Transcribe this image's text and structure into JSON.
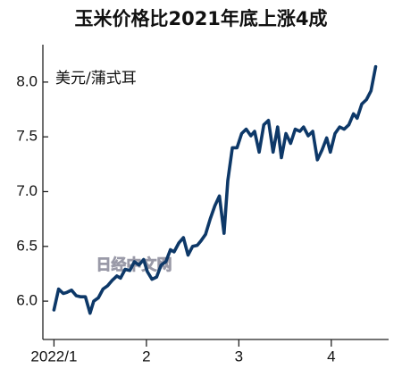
{
  "chart_data": {
    "type": "line",
    "title": "玉米价格比2021年底上涨4成",
    "unit_label": "美元/蒲式耳",
    "watermark": "日经中文网",
    "x": [
      1.0,
      1.05,
      1.1,
      1.14,
      1.19,
      1.24,
      1.29,
      1.34,
      1.39,
      1.43,
      1.48,
      1.53,
      1.58,
      1.63,
      1.68,
      1.72,
      1.77,
      1.82,
      1.87,
      1.92,
      1.97,
      2.01,
      2.06,
      2.11,
      2.16,
      2.21,
      2.26,
      2.3,
      2.35,
      2.4,
      2.45,
      2.5,
      2.55,
      2.59,
      2.64,
      2.69,
      2.74,
      2.79,
      2.84,
      2.88,
      2.93,
      2.98,
      3.03,
      3.08,
      3.13,
      3.17,
      3.22,
      3.27,
      3.32,
      3.37,
      3.42,
      3.46,
      3.51,
      3.56,
      3.61,
      3.66,
      3.7,
      3.75,
      3.8,
      3.85,
      3.9,
      3.95,
      3.99,
      4.04,
      4.09,
      4.14,
      4.19,
      4.24,
      4.28,
      4.33,
      4.38,
      4.43,
      4.48
    ],
    "series": [
      {
        "color": "#0d3868",
        "values": [
          5.92,
          6.11,
          6.07,
          6.08,
          6.1,
          6.05,
          6.04,
          6.04,
          5.89,
          6.0,
          6.03,
          6.11,
          6.14,
          6.19,
          6.23,
          6.21,
          6.29,
          6.28,
          6.36,
          6.33,
          6.38,
          6.27,
          6.2,
          6.22,
          6.33,
          6.36,
          6.47,
          6.45,
          6.53,
          6.58,
          6.42,
          6.5,
          6.51,
          6.55,
          6.61,
          6.75,
          6.87,
          6.96,
          6.62,
          7.1,
          7.4,
          7.4,
          7.53,
          7.57,
          7.51,
          7.55,
          7.36,
          7.61,
          7.65,
          7.36,
          7.59,
          7.31,
          7.53,
          7.44,
          7.57,
          7.55,
          7.59,
          7.51,
          7.55,
          7.29,
          7.38,
          7.49,
          7.36,
          7.53,
          7.59,
          7.57,
          7.61,
          7.71,
          7.67,
          7.8,
          7.84,
          7.92,
          8.14
        ]
      }
    ],
    "xlim": [
      0.88,
      4.62
    ],
    "xticks": [
      {
        "value": 1,
        "label": "2022/1"
      },
      2,
      3,
      4
    ],
    "ylim": [
      5.65,
      8.26
    ],
    "yticks": [
      {
        "value": 6,
        "label": "6.0"
      },
      6.5,
      {
        "value": 7,
        "label": "7.0"
      },
      7.5,
      {
        "value": 8,
        "label": "8.0"
      }
    ],
    "grid": false
  }
}
